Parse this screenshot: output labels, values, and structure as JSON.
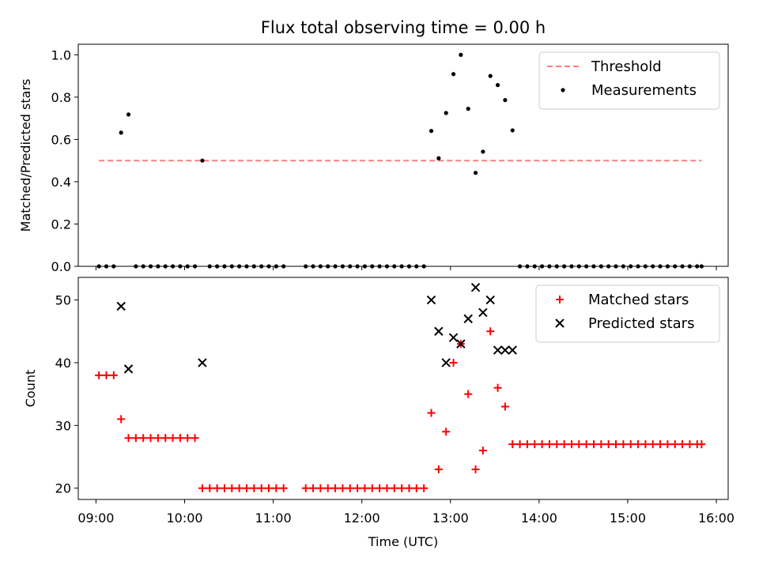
{
  "chart_data": {
    "title": "Flux total observing time = 0.00 h",
    "xlabel": "Time (UTC)",
    "x_tick_labels": [
      "09:00",
      "10:00",
      "11:00",
      "12:00",
      "13:00",
      "14:00",
      "15:00",
      "16:00"
    ],
    "xlim": [
      "08:48",
      "16:08"
    ],
    "panels": [
      {
        "type": "scatter",
        "ylabel": "Matched/Predicted stars",
        "ylim": [
          0,
          1.05
        ],
        "yticks": [
          0.0,
          0.2,
          0.4,
          0.6,
          0.8,
          1.0
        ],
        "y_tick_labels": [
          "0.0",
          "0.2",
          "0.4",
          "0.6",
          "0.8",
          "1.0"
        ],
        "legend_position": "upper-right",
        "lines": [
          {
            "name": "Threshold",
            "color": "#ff7f7f",
            "style": "dashed",
            "y": 0.5,
            "x_range": [
              "09:02",
              "15:50"
            ]
          }
        ],
        "series": [
          {
            "name": "Measurements",
            "marker": "dot",
            "color": "#000000",
            "points": [
              [
                "09:02",
                0
              ],
              [
                "09:07",
                0
              ],
              [
                "09:12",
                0
              ],
              [
                "09:17",
                0.632
              ],
              [
                "09:22",
                0.718
              ],
              [
                "09:27",
                0
              ],
              [
                "09:32",
                0
              ],
              [
                "09:37",
                0
              ],
              [
                "09:42",
                0
              ],
              [
                "09:47",
                0
              ],
              [
                "09:52",
                0
              ],
              [
                "09:57",
                0
              ],
              [
                "10:02",
                0
              ],
              [
                "10:07",
                0
              ],
              [
                "10:12",
                0.5
              ],
              [
                "10:17",
                0
              ],
              [
                "10:22",
                0
              ],
              [
                "10:27",
                0
              ],
              [
                "10:32",
                0
              ],
              [
                "10:37",
                0
              ],
              [
                "10:42",
                0
              ],
              [
                "10:47",
                0
              ],
              [
                "10:52",
                0
              ],
              [
                "10:57",
                0
              ],
              [
                "11:02",
                0
              ],
              [
                "11:07",
                0
              ],
              [
                "11:22",
                0
              ],
              [
                "11:27",
                0
              ],
              [
                "11:32",
                0
              ],
              [
                "11:37",
                0
              ],
              [
                "11:42",
                0
              ],
              [
                "11:47",
                0
              ],
              [
                "11:52",
                0
              ],
              [
                "11:57",
                0
              ],
              [
                "12:02",
                0
              ],
              [
                "12:07",
                0
              ],
              [
                "12:12",
                0
              ],
              [
                "12:17",
                0
              ],
              [
                "12:22",
                0
              ],
              [
                "12:27",
                0
              ],
              [
                "12:32",
                0
              ],
              [
                "12:37",
                0
              ],
              [
                "12:42",
                0
              ],
              [
                "12:47",
                0.64
              ],
              [
                "12:52",
                0.511
              ],
              [
                "12:57",
                0.725
              ],
              [
                "13:02",
                0.909
              ],
              [
                "13:07",
                1.0
              ],
              [
                "13:12",
                0.745
              ],
              [
                "13:17",
                0.442
              ],
              [
                "13:22",
                0.542
              ],
              [
                "13:27",
                0.9
              ],
              [
                "13:32",
                0.857
              ],
              [
                "13:37",
                0.786
              ],
              [
                "13:42",
                0.643
              ],
              [
                "13:47",
                0
              ],
              [
                "13:52",
                0
              ],
              [
                "13:57",
                0
              ],
              [
                "14:02",
                0
              ],
              [
                "14:07",
                0
              ],
              [
                "14:12",
                0
              ],
              [
                "14:17",
                0
              ],
              [
                "14:22",
                0
              ],
              [
                "14:27",
                0
              ],
              [
                "14:32",
                0
              ],
              [
                "14:37",
                0
              ],
              [
                "14:42",
                0
              ],
              [
                "14:47",
                0
              ],
              [
                "14:52",
                0
              ],
              [
                "14:57",
                0
              ],
              [
                "15:02",
                0
              ],
              [
                "15:07",
                0
              ],
              [
                "15:12",
                0
              ],
              [
                "15:17",
                0
              ],
              [
                "15:22",
                0
              ],
              [
                "15:27",
                0
              ],
              [
                "15:32",
                0
              ],
              [
                "15:37",
                0
              ],
              [
                "15:42",
                0
              ],
              [
                "15:47",
                0
              ],
              [
                "15:50",
                0
              ]
            ]
          }
        ]
      },
      {
        "type": "scatter",
        "ylabel": "Count",
        "ylim": [
          18.2,
          53.6
        ],
        "yticks": [
          20,
          30,
          40,
          50
        ],
        "y_tick_labels": [
          "20",
          "30",
          "40",
          "50"
        ],
        "legend_position": "upper-right",
        "series": [
          {
            "name": "Matched stars",
            "marker": "plus",
            "color": "#ff0000",
            "points": [
              [
                "09:02",
                38
              ],
              [
                "09:07",
                38
              ],
              [
                "09:12",
                38
              ],
              [
                "09:17",
                31
              ],
              [
                "09:22",
                28
              ],
              [
                "09:27",
                28
              ],
              [
                "09:32",
                28
              ],
              [
                "09:37",
                28
              ],
              [
                "09:42",
                28
              ],
              [
                "09:47",
                28
              ],
              [
                "09:52",
                28
              ],
              [
                "09:57",
                28
              ],
              [
                "10:02",
                28
              ],
              [
                "10:07",
                28
              ],
              [
                "10:12",
                20
              ],
              [
                "10:17",
                20
              ],
              [
                "10:22",
                20
              ],
              [
                "10:27",
                20
              ],
              [
                "10:32",
                20
              ],
              [
                "10:37",
                20
              ],
              [
                "10:42",
                20
              ],
              [
                "10:47",
                20
              ],
              [
                "10:52",
                20
              ],
              [
                "10:57",
                20
              ],
              [
                "11:02",
                20
              ],
              [
                "11:07",
                20
              ],
              [
                "11:22",
                20
              ],
              [
                "11:27",
                20
              ],
              [
                "11:32",
                20
              ],
              [
                "11:37",
                20
              ],
              [
                "11:42",
                20
              ],
              [
                "11:47",
                20
              ],
              [
                "11:52",
                20
              ],
              [
                "11:57",
                20
              ],
              [
                "12:02",
                20
              ],
              [
                "12:07",
                20
              ],
              [
                "12:12",
                20
              ],
              [
                "12:17",
                20
              ],
              [
                "12:22",
                20
              ],
              [
                "12:27",
                20
              ],
              [
                "12:32",
                20
              ],
              [
                "12:37",
                20
              ],
              [
                "12:42",
                20
              ],
              [
                "12:47",
                32
              ],
              [
                "12:52",
                23
              ],
              [
                "12:57",
                29
              ],
              [
                "13:02",
                40
              ],
              [
                "13:07",
                43
              ],
              [
                "13:12",
                35
              ],
              [
                "13:17",
                23
              ],
              [
                "13:22",
                26
              ],
              [
                "13:27",
                45
              ],
              [
                "13:32",
                36
              ],
              [
                "13:37",
                33
              ],
              [
                "13:42",
                27
              ],
              [
                "13:47",
                27
              ],
              [
                "13:52",
                27
              ],
              [
                "13:57",
                27
              ],
              [
                "14:02",
                27
              ],
              [
                "14:07",
                27
              ],
              [
                "14:12",
                27
              ],
              [
                "14:17",
                27
              ],
              [
                "14:22",
                27
              ],
              [
                "14:27",
                27
              ],
              [
                "14:32",
                27
              ],
              [
                "14:37",
                27
              ],
              [
                "14:42",
                27
              ],
              [
                "14:47",
                27
              ],
              [
                "14:52",
                27
              ],
              [
                "14:57",
                27
              ],
              [
                "15:02",
                27
              ],
              [
                "15:07",
                27
              ],
              [
                "15:12",
                27
              ],
              [
                "15:17",
                27
              ],
              [
                "15:22",
                27
              ],
              [
                "15:27",
                27
              ],
              [
                "15:32",
                27
              ],
              [
                "15:37",
                27
              ],
              [
                "15:42",
                27
              ],
              [
                "15:47",
                27
              ],
              [
                "15:50",
                27
              ]
            ]
          },
          {
            "name": "Predicted stars",
            "marker": "x",
            "color": "#000000",
            "points": [
              [
                "09:17",
                49
              ],
              [
                "09:22",
                39
              ],
              [
                "10:12",
                40
              ],
              [
                "12:47",
                50
              ],
              [
                "12:52",
                45
              ],
              [
                "12:57",
                40
              ],
              [
                "13:02",
                44
              ],
              [
                "13:07",
                43
              ],
              [
                "13:12",
                47
              ],
              [
                "13:17",
                52
              ],
              [
                "13:22",
                48
              ],
              [
                "13:27",
                50
              ],
              [
                "13:32",
                42
              ],
              [
                "13:37",
                42
              ],
              [
                "13:42",
                42
              ]
            ]
          }
        ]
      }
    ]
  }
}
